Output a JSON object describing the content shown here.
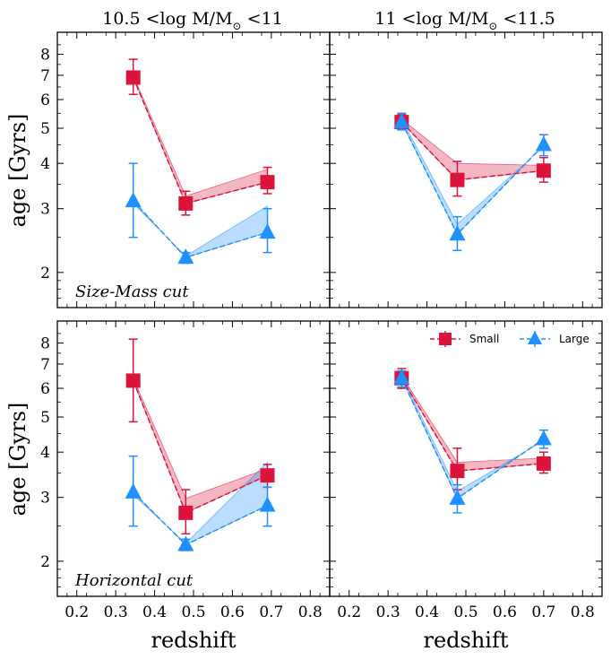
{
  "chart_data": {
    "type": "line",
    "xlabel": "redshift",
    "ylabel": "age [Gyrs]",
    "xlim": [
      0.15,
      0.85
    ],
    "ylim": [
      1.6,
      9.2
    ],
    "yscale": "log",
    "x_ticks": [
      0.2,
      0.3,
      0.4,
      0.5,
      0.6,
      0.7,
      0.8
    ],
    "x_tick_labels": [
      "0.2",
      "0.3",
      "0.4",
      "0.5",
      "0.6",
      "0.7",
      "0.8"
    ],
    "y_ticks": [
      2,
      3,
      4,
      5,
      6,
      7,
      8
    ],
    "y_tick_labels": [
      "2",
      "3",
      "4",
      "5",
      "6",
      "7",
      "8"
    ],
    "colors": {
      "small": "#dc143c",
      "large": "#1e90ff"
    },
    "legend": {
      "small": "Small",
      "large": "Large"
    },
    "panels": [
      {
        "row": 0,
        "col": 0,
        "title_main": "10.5 <log M/M",
        "title_sub": "⊙",
        "title_tail": " <11",
        "note": "Size-Mass cut",
        "series": [
          {
            "key": "small",
            "name": "Small",
            "marker": "square",
            "x": [
              0.345,
              0.48,
              0.69
            ],
            "y": [
              6.9,
              3.1,
              3.55
            ],
            "err_low": [
              6.2,
              2.88,
              3.3
            ],
            "err_high": [
              7.75,
              3.35,
              3.9
            ],
            "band_other": [
              7.0,
              3.25,
              3.85
            ]
          },
          {
            "key": "large",
            "name": "Large",
            "marker": "triangle",
            "x": [
              0.345,
              0.48,
              0.69
            ],
            "y": [
              3.15,
              2.2,
              2.58
            ],
            "err_low": [
              2.5,
              2.12,
              2.27
            ],
            "err_high": [
              4.0,
              2.27,
              3.0
            ],
            "band_other": [
              3.1,
              2.22,
              3.05
            ]
          }
        ]
      },
      {
        "row": 0,
        "col": 1,
        "title_main": "11 <log M/M",
        "title_sub": "⊙",
        "title_tail": " <11.5",
        "note": "",
        "series": [
          {
            "key": "small",
            "name": "Small",
            "marker": "square",
            "x": [
              0.335,
              0.478,
              0.7
            ],
            "y": [
              5.2,
              3.6,
              3.82
            ],
            "err_low": [
              4.95,
              3.25,
              3.55
            ],
            "err_high": [
              5.45,
              4.05,
              4.15
            ],
            "band_other": [
              5.3,
              4.0,
              3.95
            ]
          },
          {
            "key": "large",
            "name": "Large",
            "marker": "triangle",
            "x": [
              0.335,
              0.478,
              0.7
            ],
            "y": [
              5.2,
              2.55,
              4.5
            ],
            "err_low": [
              4.95,
              2.3,
              4.2
            ],
            "err_high": [
              5.5,
              2.85,
              4.8
            ],
            "band_other": [
              5.3,
              2.72,
              4.45
            ]
          }
        ]
      },
      {
        "row": 1,
        "col": 0,
        "title_main": "",
        "title_sub": "",
        "title_tail": "",
        "note": "Horizontal cut",
        "series": [
          {
            "key": "small",
            "name": "Small",
            "marker": "square",
            "x": [
              0.345,
              0.48,
              0.69
            ],
            "y": [
              6.3,
              2.72,
              3.45
            ],
            "err_low": [
              4.85,
              2.38,
              3.2
            ],
            "err_high": [
              8.2,
              3.15,
              3.7
            ],
            "band_other": [
              6.4,
              2.98,
              3.6
            ]
          },
          {
            "key": "large",
            "name": "Large",
            "marker": "triangle",
            "x": [
              0.345,
              0.48,
              0.69
            ],
            "y": [
              3.1,
              2.22,
              2.85
            ],
            "err_low": [
              2.5,
              2.14,
              2.5
            ],
            "err_high": [
              3.9,
              2.3,
              3.2
            ],
            "band_other": [
              3.05,
              2.24,
              3.75
            ]
          }
        ]
      },
      {
        "row": 1,
        "col": 1,
        "title_main": "",
        "title_sub": "",
        "title_tail": "",
        "note": "",
        "show_legend": true,
        "series": [
          {
            "key": "small",
            "name": "Small",
            "marker": "square",
            "x": [
              0.335,
              0.478,
              0.7
            ],
            "y": [
              6.4,
              3.55,
              3.72
            ],
            "err_low": [
              6.0,
              3.15,
              3.5
            ],
            "err_high": [
              6.8,
              4.1,
              4.0
            ],
            "band_other": [
              6.5,
              3.75,
              3.85
            ]
          },
          {
            "key": "large",
            "name": "Large",
            "marker": "triangle",
            "x": [
              0.335,
              0.478,
              0.7
            ],
            "y": [
              6.4,
              2.98,
              4.35
            ],
            "err_low": [
              6.05,
              2.72,
              4.1
            ],
            "err_high": [
              6.7,
              3.25,
              4.6
            ],
            "band_other": [
              6.5,
              3.12,
              4.3
            ]
          }
        ]
      }
    ]
  }
}
